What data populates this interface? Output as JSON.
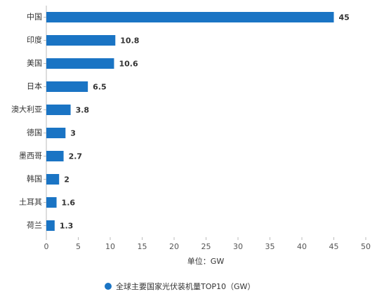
{
  "chart_data": {
    "type": "bar",
    "orientation": "horizontal",
    "categories": [
      "中国",
      "印度",
      "美国",
      "日本",
      "澳大利亚",
      "德国",
      "墨西哥",
      "韩国",
      "土耳其",
      "荷兰"
    ],
    "series": [
      {
        "name": "全球主要国家光伏装机量TOP10（GW）",
        "color": "#1a74c4",
        "values": [
          45,
          10.8,
          10.6,
          6.5,
          3.8,
          3,
          2.7,
          2,
          1.6,
          1.3
        ]
      }
    ],
    "xlim": [
      0,
      50
    ],
    "xticks": [
      0,
      5,
      10,
      15,
      20,
      25,
      30,
      35,
      40,
      45,
      50
    ],
    "x_label": "单位：GW",
    "legend": "bottom",
    "grid": false
  }
}
